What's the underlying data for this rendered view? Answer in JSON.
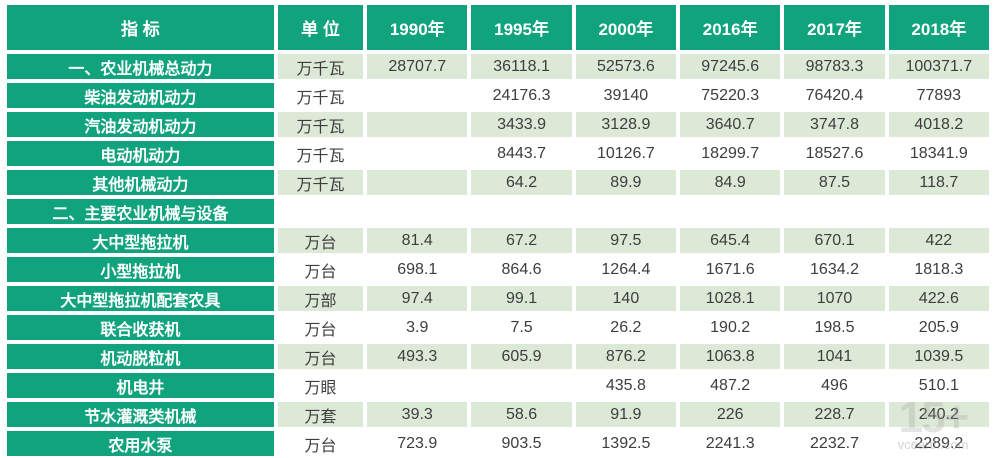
{
  "chart_data": {
    "type": "table",
    "columns": [
      "指 标",
      "单 位",
      "1990年",
      "1995年",
      "2000年",
      "2016年",
      "2017年",
      "2018年"
    ],
    "rows": [
      {
        "label": "一、农业机械总动力",
        "unit": "万千瓦",
        "values": [
          "28707.7",
          "36118.1",
          "52573.6",
          "97245.6",
          "98783.3",
          "100371.7"
        ]
      },
      {
        "label": "柴油发动机动力",
        "unit": "万千瓦",
        "values": [
          "",
          "24176.3",
          "39140",
          "75220.3",
          "76420.4",
          "77893"
        ]
      },
      {
        "label": "汽油发动机动力",
        "unit": "万千瓦",
        "values": [
          "",
          "3433.9",
          "3128.9",
          "3640.7",
          "3747.8",
          "4018.2"
        ]
      },
      {
        "label": "电动机动力",
        "unit": "万千瓦",
        "values": [
          "",
          "8443.7",
          "10126.7",
          "18299.7",
          "18527.6",
          "18341.9"
        ]
      },
      {
        "label": "其他机械动力",
        "unit": "万千瓦",
        "values": [
          "",
          "64.2",
          "89.9",
          "84.9",
          "87.5",
          "118.7"
        ]
      },
      {
        "label": "二、主要农业机械与设备",
        "unit": "",
        "values": [
          "",
          "",
          "",
          "",
          "",
          ""
        ]
      },
      {
        "label": "大中型拖拉机",
        "unit": "万台",
        "values": [
          "81.4",
          "67.2",
          "97.5",
          "645.4",
          "670.1",
          "422"
        ]
      },
      {
        "label": "小型拖拉机",
        "unit": "万台",
        "values": [
          "698.1",
          "864.6",
          "1264.4",
          "1671.6",
          "1634.2",
          "1818.3"
        ]
      },
      {
        "label": "大中型拖拉机配套农具",
        "unit": "万部",
        "values": [
          "97.4",
          "99.1",
          "140",
          "1028.1",
          "1070",
          "422.6"
        ]
      },
      {
        "label": "联合收获机",
        "unit": "万台",
        "values": [
          "3.9",
          "7.5",
          "26.2",
          "190.2",
          "198.5",
          "205.9"
        ]
      },
      {
        "label": "机动脱粒机",
        "unit": "万台",
        "values": [
          "493.3",
          "605.9",
          "876.2",
          "1063.8",
          "1041",
          "1039.5"
        ]
      },
      {
        "label": "机电井",
        "unit": "万眼",
        "values": [
          "",
          "",
          "435.8",
          "487.2",
          "496",
          "510.1"
        ]
      },
      {
        "label": "节水灌溉类机械",
        "unit": "万套",
        "values": [
          "39.3",
          "58.6",
          "91.9",
          "226",
          "228.7",
          "240.2"
        ]
      },
      {
        "label": "农用水泵",
        "unit": "万台",
        "values": [
          "723.9",
          "903.5",
          "1392.5",
          "2241.3",
          "2232.7",
          "2289.2"
        ]
      }
    ]
  },
  "watermark": {
    "logo": "15+",
    "text": "vcearth.com"
  },
  "colors": {
    "header_green": "#10a37e",
    "row_tint_green": "#dde9d7",
    "cell_text": "#3d3d3d",
    "header_text": "#ffffff"
  }
}
